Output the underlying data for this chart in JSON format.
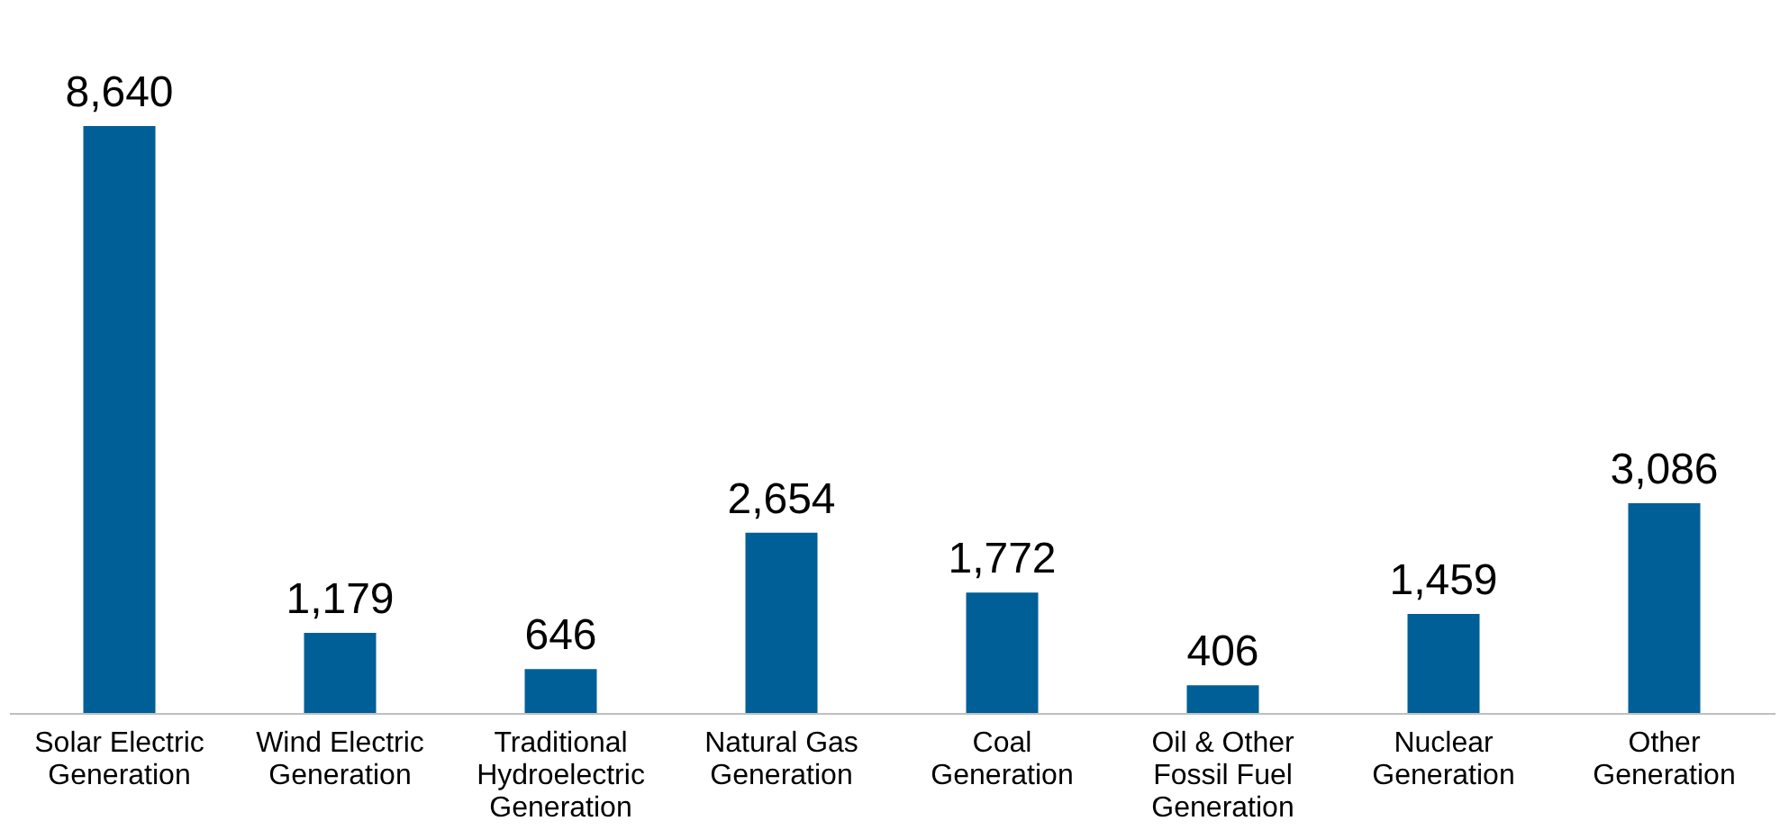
{
  "chart_data": {
    "type": "bar",
    "categories": [
      "Solar Electric Generation",
      "Wind Electric Generation",
      "Traditional Hydroelectric Generation",
      "Natural Gas Generation",
      "Coal Generation",
      "Oil & Other Fossil Fuel Generation",
      "Nuclear Generation",
      "Other Generation"
    ],
    "values": [
      8640,
      1179,
      646,
      2654,
      1772,
      406,
      1459,
      3086
    ],
    "value_labels": [
      "8,640",
      "1,179",
      "646",
      "2,654",
      "1,772",
      "406",
      "1,459",
      "3,086"
    ],
    "color": "#005f96",
    "grid": false
  }
}
